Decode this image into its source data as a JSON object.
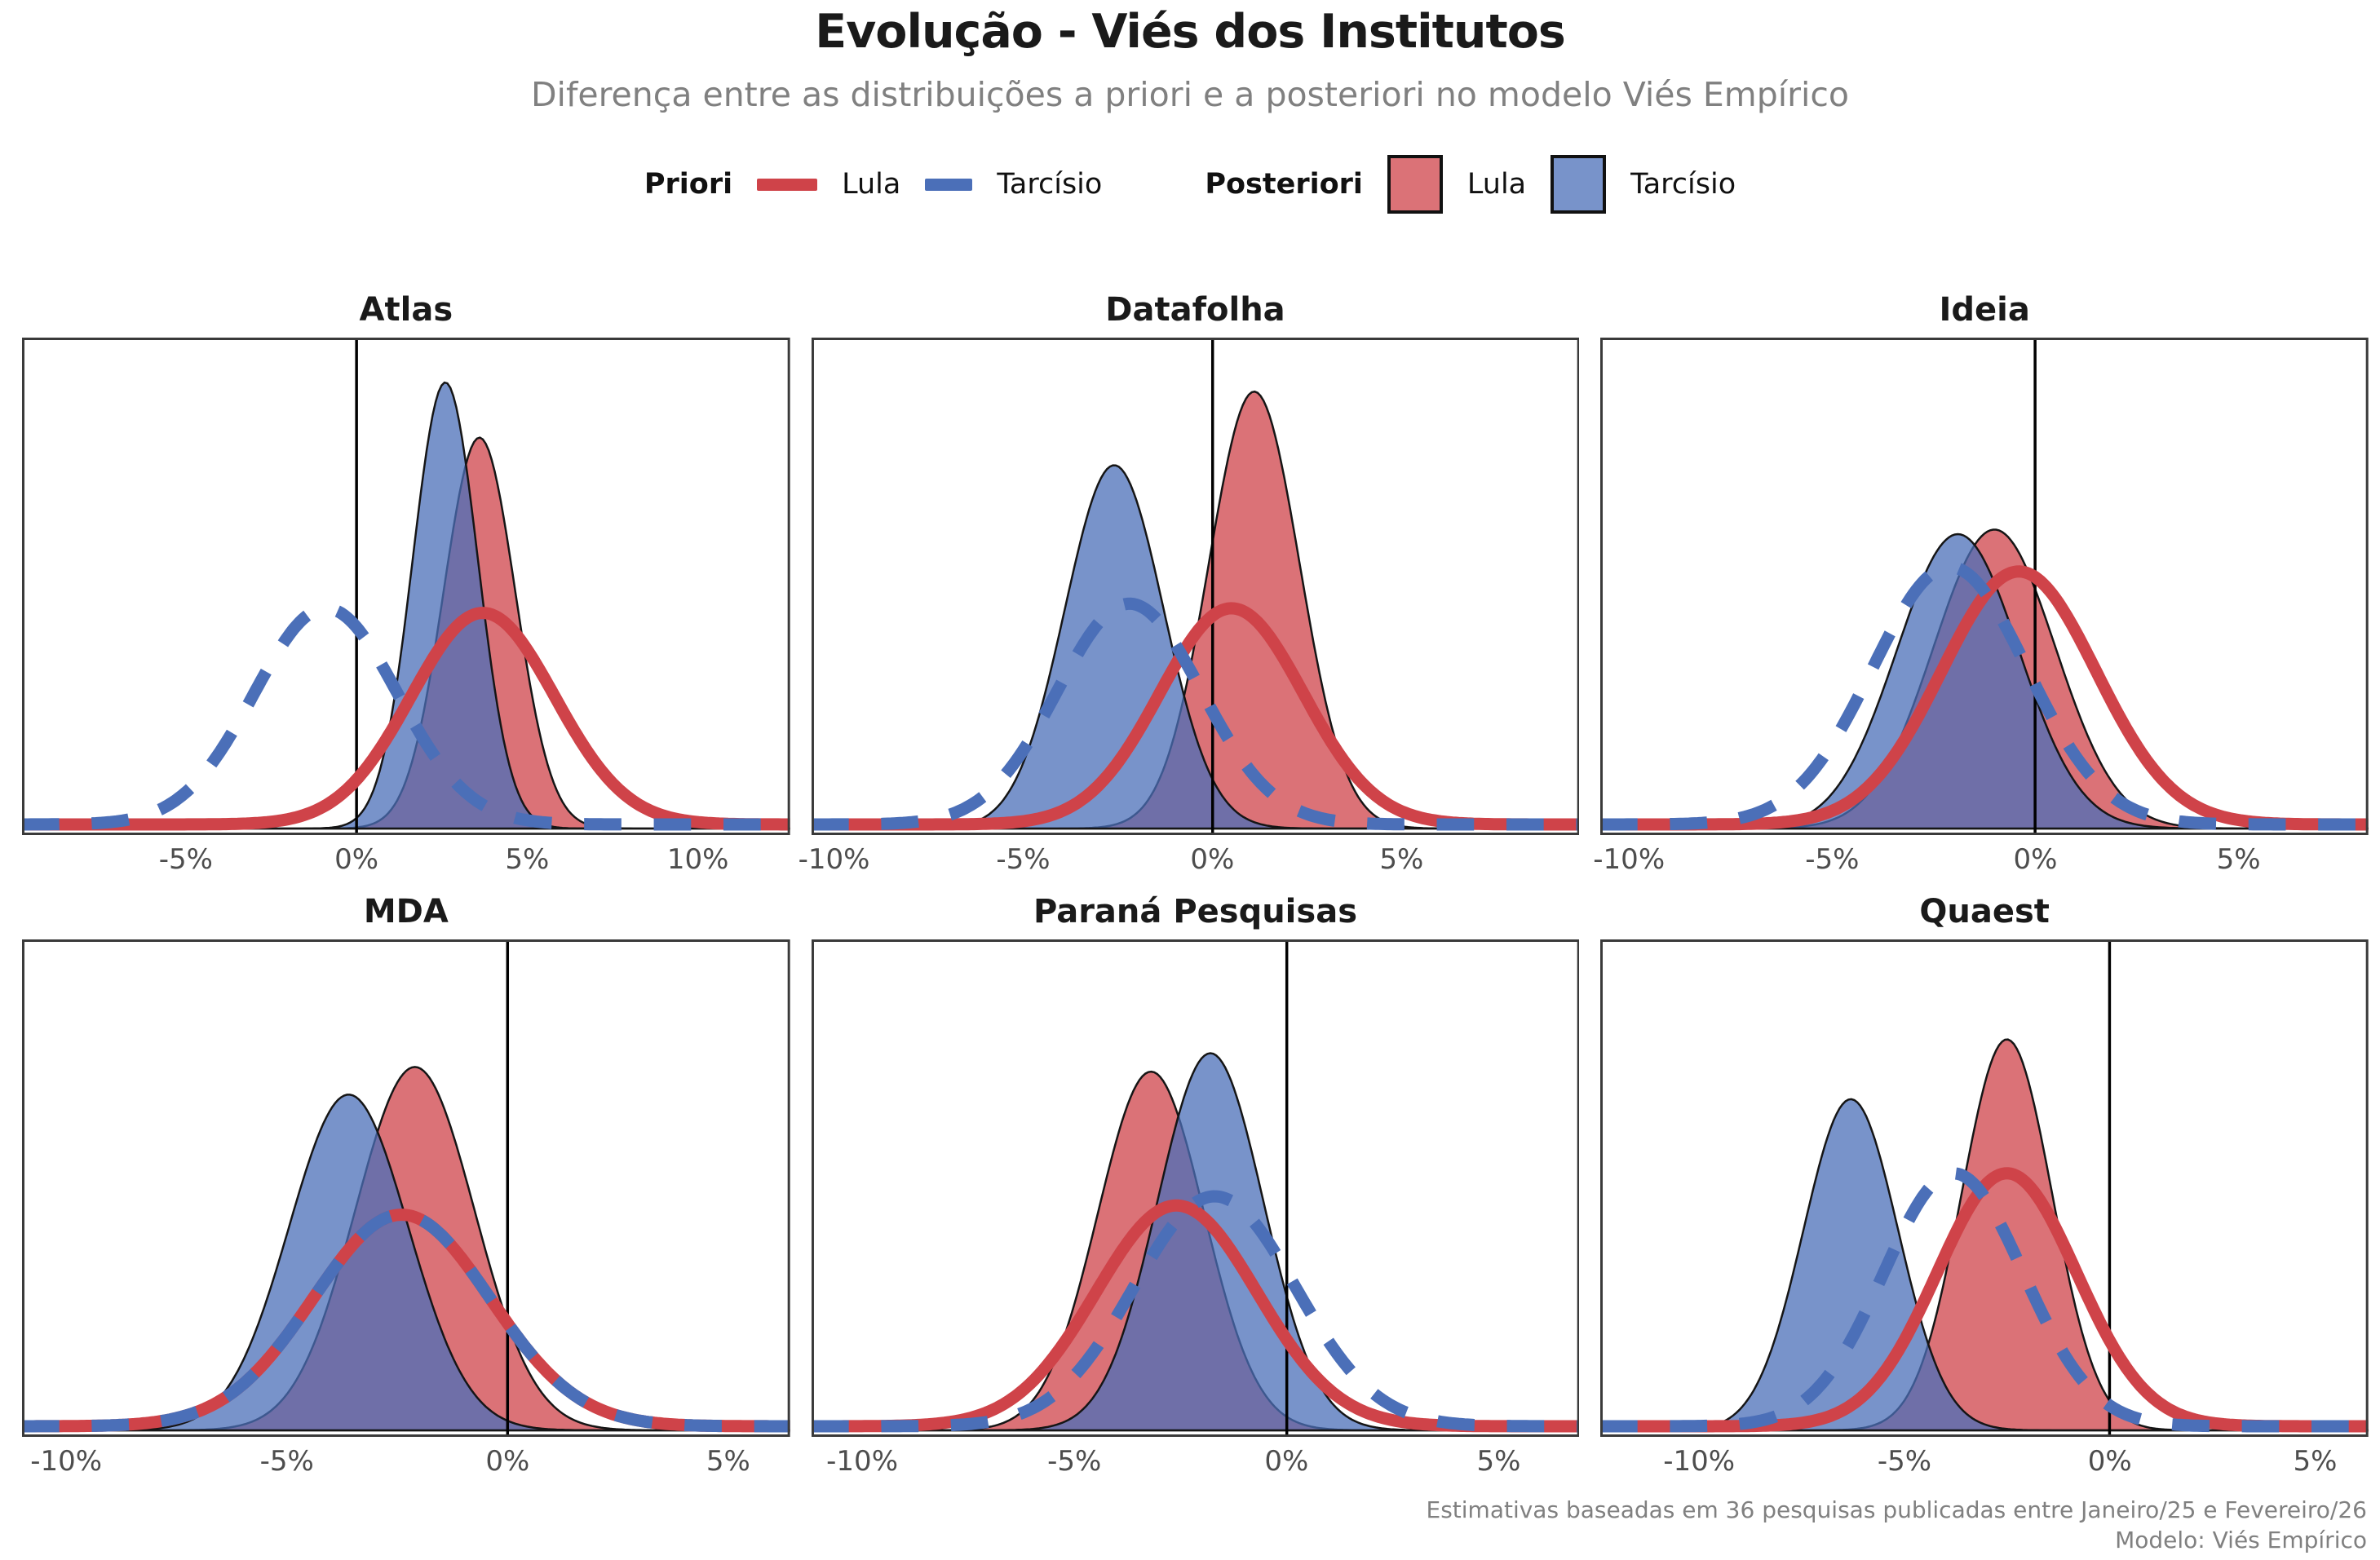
{
  "header": {
    "title": "Evolução - Viés dos Institutos",
    "subtitle": "Diferença entre as distribuições a priori e a posteriori no modelo Viés Empírico"
  },
  "legend": {
    "priori_label": "Priori",
    "posteriori_label": "Posteriori",
    "priori_lula_label": "Lula",
    "priori_tarcisio_label": "Tarcísio",
    "posteriori_lula_label": "Lula",
    "posteriori_tarcisio_label": "Tarcísio"
  },
  "caption": {
    "line1": "Estimativas baseadas em 36 pesquisas publicadas entre Janeiro/25 e Fevereiro/26",
    "line2": "Modelo: Viés Empírico"
  },
  "colors": {
    "lula_line": "#CF4349",
    "tarcisio_line": "#4B6FB8",
    "lula_fill": "rgba(207,67,73,0.75)",
    "tarcisio_fill": "rgba(75,111,184,0.75)",
    "fill_outline": "#151515",
    "panel_border": "#3a3a3a",
    "zero_line": "#000000",
    "tick_text": "#4d4d4d",
    "muted_text": "#808080"
  },
  "chart_data": {
    "type": "area",
    "subtype": "density-small-multiples",
    "units": "percentage points of polling bias",
    "tick_format": "percent",
    "zero_line": true,
    "legend_position": "top",
    "series_legend": [
      {
        "group": "Priori",
        "name": "Lula",
        "style": "solid-line",
        "color": "#CF4349"
      },
      {
        "group": "Priori",
        "name": "Tarcísio",
        "style": "dashed-line",
        "color": "#4B6FB8"
      },
      {
        "group": "Posteriori",
        "name": "Lula",
        "style": "filled-area",
        "color": "rgba(207,67,73,0.75)"
      },
      {
        "group": "Posteriori",
        "name": "Tarcísio",
        "style": "filled-area",
        "color": "rgba(75,111,184,0.75)"
      }
    ],
    "panels": [
      {
        "name": "Atlas",
        "x_domain": [
          -9.8,
          12.7
        ],
        "ticks": [
          -5,
          0,
          5,
          10
        ],
        "posterior": {
          "lula": {
            "mean": 3.6,
            "sd": 1.05,
            "peak": 0.85
          },
          "tarcisio": {
            "mean": 2.6,
            "sd": 0.95,
            "peak": 0.97
          }
        },
        "prior": {
          "lula": {
            "mean": 3.7,
            "sd": 2.1,
            "peak": 0.46
          },
          "tarcisio": {
            "mean": -0.9,
            "sd": 2.1,
            "peak": 0.47
          }
        }
      },
      {
        "name": "Datafolha",
        "x_domain": [
          -10.6,
          9.7
        ],
        "ticks": [
          -10,
          -5,
          0,
          5
        ],
        "posterior": {
          "lula": {
            "mean": 1.1,
            "sd": 1.2,
            "peak": 0.95
          },
          "tarcisio": {
            "mean": -2.6,
            "sd": 1.3,
            "peak": 0.79
          }
        },
        "prior": {
          "lula": {
            "mean": 0.5,
            "sd": 1.9,
            "peak": 0.47
          },
          "tarcisio": {
            "mean": -2.2,
            "sd": 1.9,
            "peak": 0.48
          }
        }
      },
      {
        "name": "Ideia",
        "x_domain": [
          -10.7,
          8.2
        ],
        "ticks": [
          -10,
          -5,
          0,
          5
        ],
        "posterior": {
          "lula": {
            "mean": -1.0,
            "sd": 1.5,
            "peak": 0.65
          },
          "tarcisio": {
            "mean": -1.9,
            "sd": 1.5,
            "peak": 0.64
          }
        },
        "prior": {
          "lula": {
            "mean": -0.4,
            "sd": 1.9,
            "peak": 0.55
          },
          "tarcisio": {
            "mean": -2.1,
            "sd": 1.9,
            "peak": 0.56
          }
        }
      },
      {
        "name": "MDA",
        "x_domain": [
          -11.0,
          6.4
        ],
        "ticks": [
          -10,
          -5,
          0,
          5
        ],
        "posterior": {
          "lula": {
            "mean": -2.1,
            "sd": 1.35,
            "peak": 0.79
          },
          "tarcisio": {
            "mean": -3.6,
            "sd": 1.35,
            "peak": 0.73
          }
        },
        "prior": {
          "lula": {
            "mean": -2.4,
            "sd": 2.0,
            "peak": 0.46
          },
          "tarcisio": {
            "mean": -2.4,
            "sd": 2.0,
            "peak": 0.46
          }
        }
      },
      {
        "name": "Paraná Pesquisas",
        "x_domain": [
          -11.2,
          6.9
        ],
        "ticks": [
          -10,
          -5,
          0,
          5
        ],
        "posterior": {
          "lula": {
            "mean": -3.2,
            "sd": 1.25,
            "peak": 0.78
          },
          "tarcisio": {
            "mean": -1.8,
            "sd": 1.25,
            "peak": 0.82
          }
        },
        "prior": {
          "lula": {
            "mean": -2.6,
            "sd": 1.9,
            "peak": 0.48
          },
          "tarcisio": {
            "mean": -1.7,
            "sd": 1.9,
            "peak": 0.5
          }
        }
      },
      {
        "name": "Quaest",
        "x_domain": [
          -12.4,
          6.3
        ],
        "ticks": [
          -10,
          -5,
          0,
          5
        ],
        "posterior": {
          "lula": {
            "mean": -2.5,
            "sd": 1.1,
            "peak": 0.85
          },
          "tarcisio": {
            "mean": -6.3,
            "sd": 1.15,
            "peak": 0.72
          }
        },
        "prior": {
          "lula": {
            "mean": -2.5,
            "sd": 1.7,
            "peak": 0.55
          },
          "tarcisio": {
            "mean": -3.8,
            "sd": 1.7,
            "peak": 0.55
          }
        }
      }
    ]
  }
}
